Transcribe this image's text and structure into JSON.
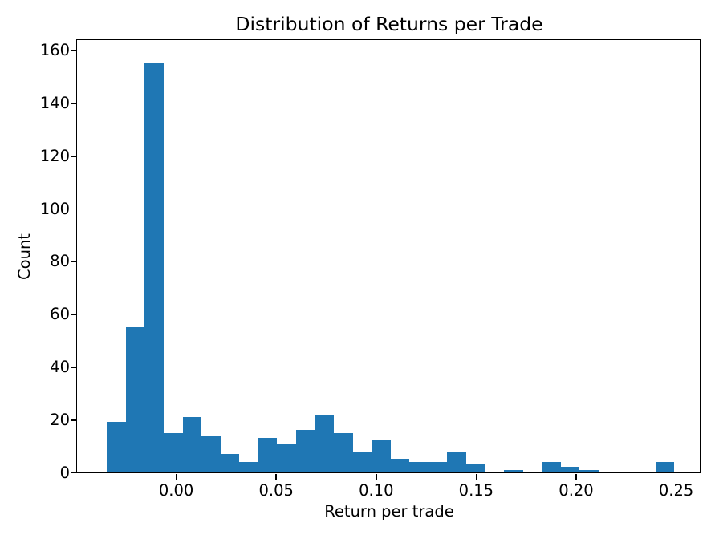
{
  "chart_data": {
    "type": "bar",
    "subtype": "histogram",
    "title": "Distribution of Returns per Trade",
    "xlabel": "Return per trade",
    "ylabel": "Count",
    "bar_color": "#1f77b4",
    "axis_color": "#000000",
    "background_color": "#ffffff",
    "grid": false,
    "legend_position": "none",
    "bins": {
      "start": -0.0344,
      "width": 0.009455,
      "counts": [
        19,
        55,
        155,
        15,
        21,
        14,
        7,
        4,
        13,
        11,
        16,
        22,
        15,
        8,
        12,
        5,
        4,
        4,
        8,
        3,
        0,
        1,
        0,
        4,
        2,
        1,
        0,
        0,
        0,
        4
      ]
    },
    "xlim": [
      -0.0492,
      0.2622
    ],
    "ylim": [
      0,
      163.7
    ],
    "xticks": [
      {
        "value": 0.0,
        "label": "0.00"
      },
      {
        "value": 0.05,
        "label": "0.05"
      },
      {
        "value": 0.1,
        "label": "0.10"
      },
      {
        "value": 0.15,
        "label": "0.15"
      },
      {
        "value": 0.2,
        "label": "0.20"
      },
      {
        "value": 0.25,
        "label": "0.25"
      }
    ],
    "yticks": [
      {
        "value": 0,
        "label": "0"
      },
      {
        "value": 20,
        "label": "20"
      },
      {
        "value": 40,
        "label": "40"
      },
      {
        "value": 60,
        "label": "60"
      },
      {
        "value": 80,
        "label": "80"
      },
      {
        "value": 100,
        "label": "100"
      },
      {
        "value": 120,
        "label": "120"
      },
      {
        "value": 140,
        "label": "140"
      },
      {
        "value": 160,
        "label": "160"
      }
    ]
  }
}
